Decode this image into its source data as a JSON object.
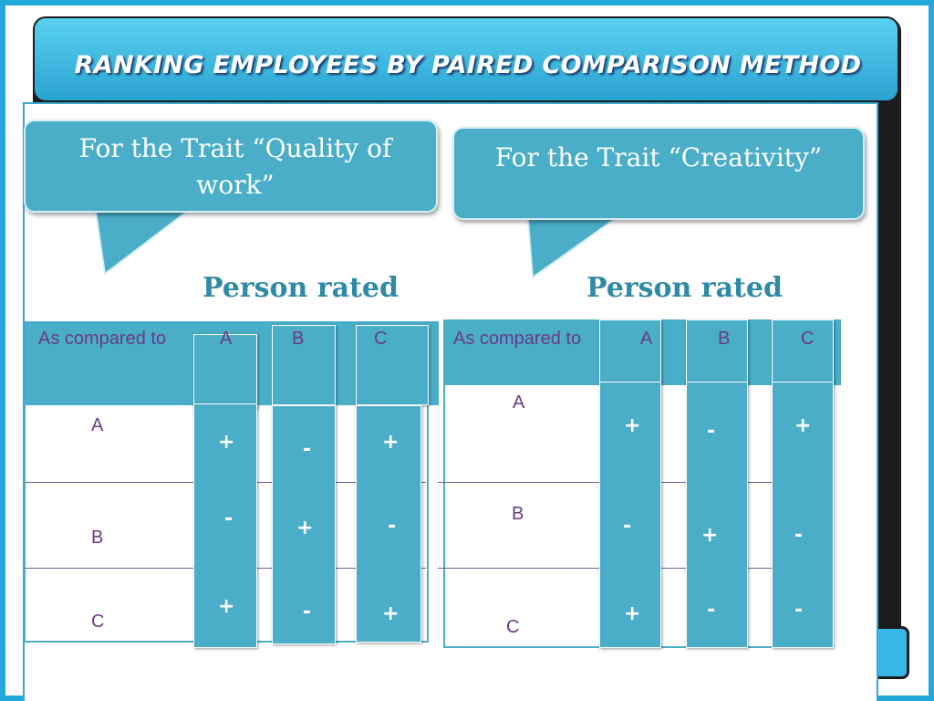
{
  "slide": {
    "title": "RANKING EMPLOYEES BY PAIRED COMPARISON METHOD"
  },
  "left": {
    "callout": "For the Trait “Quality of work”",
    "person_rated": "Person rated",
    "header_label": "As compared to",
    "columns": [
      "A",
      "B",
      "C"
    ],
    "rows": [
      {
        "label": "A",
        "cells": [
          "+",
          "-",
          "+"
        ]
      },
      {
        "label": "B",
        "cells": [
          "-",
          "+",
          "-"
        ]
      },
      {
        "label": "C",
        "cells": [
          "+",
          "-",
          "+"
        ]
      }
    ]
  },
  "right": {
    "callout": "For the Trait “Creativity”",
    "person_rated": "Person rated",
    "header_label": "As compared to",
    "columns": [
      "A",
      "B",
      "C"
    ],
    "rows": [
      {
        "label": "A",
        "cells": [
          "+",
          "-",
          "+"
        ]
      },
      {
        "label": "B",
        "cells": [
          "-",
          "+",
          "-"
        ]
      },
      {
        "label": "C",
        "cells": [
          "+",
          "-",
          "-"
        ]
      }
    ]
  },
  "colors": {
    "accent": "#4aaec9",
    "title_bar": "#2aa3d2",
    "label_text": "#6a3a86",
    "heading_text": "#2e8aa8"
  }
}
